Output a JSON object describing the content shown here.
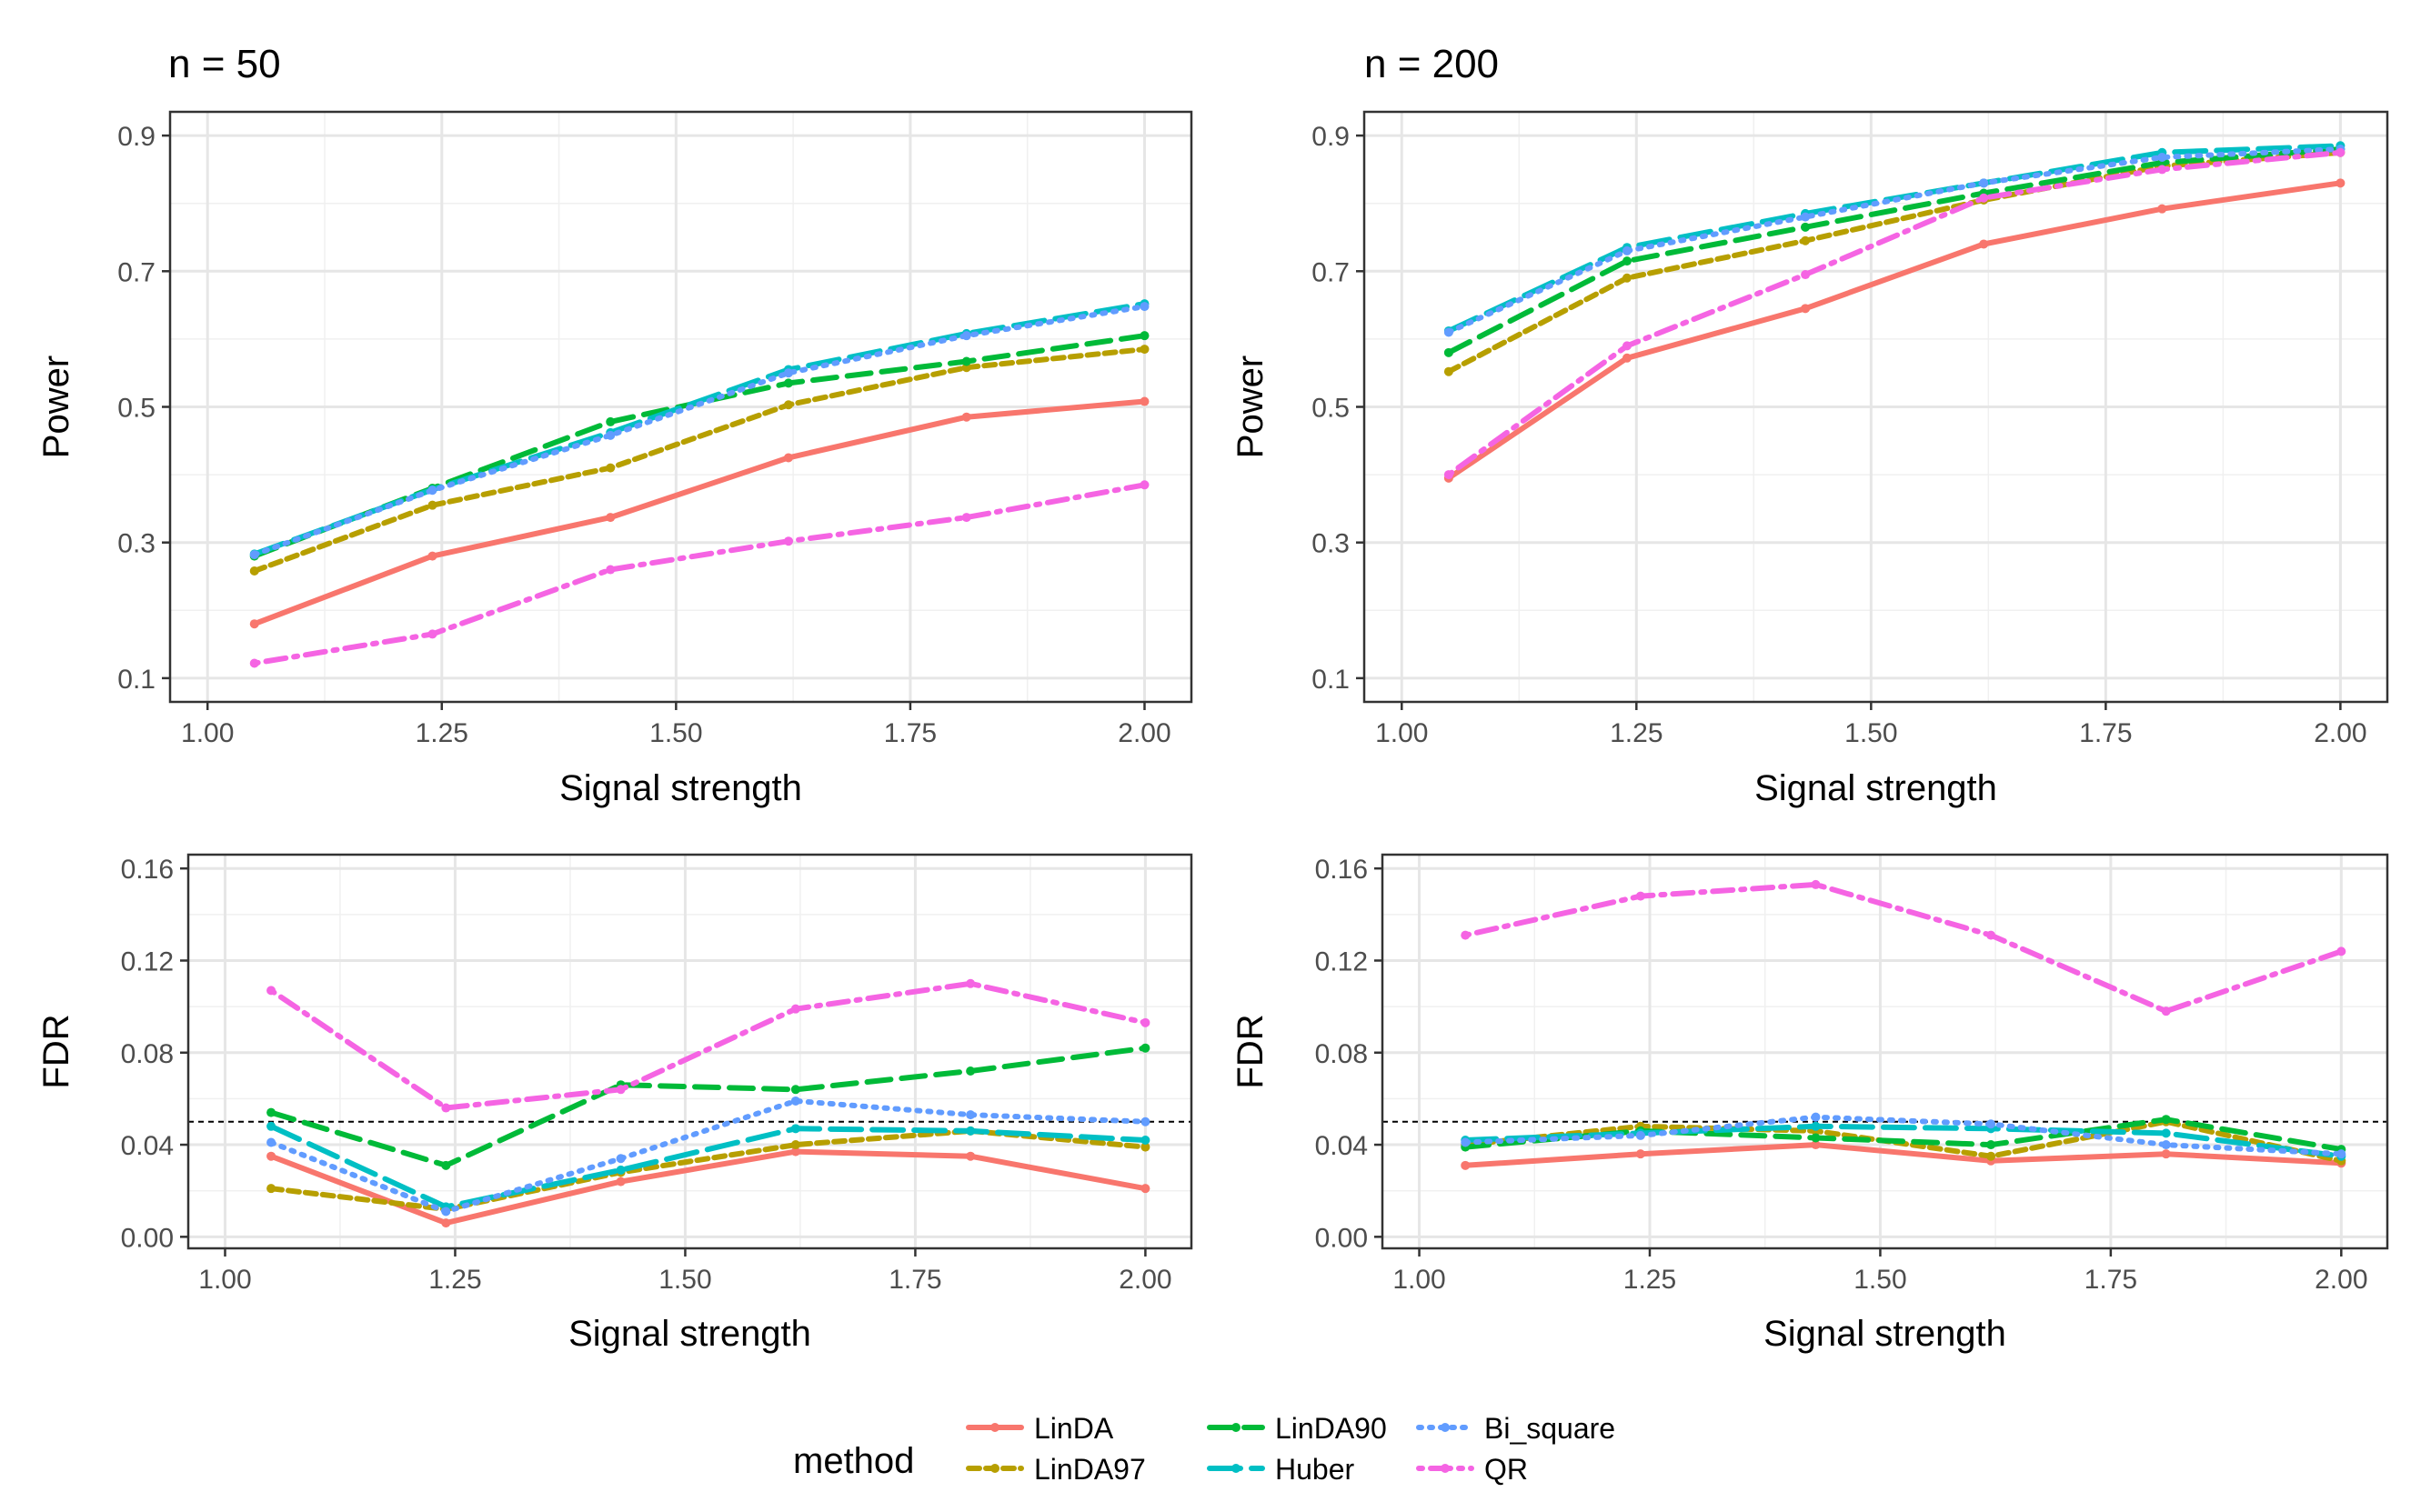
{
  "legend": {
    "title": "method",
    "items": [
      {
        "name": "LinDA",
        "color": "#F8766D",
        "dash": "solid"
      },
      {
        "name": "LinDA97",
        "color": "#B79F00",
        "dash": "short"
      },
      {
        "name": "LinDA90",
        "color": "#00BA38",
        "dash": "long"
      },
      {
        "name": "Huber",
        "color": "#00BFC4",
        "dash": "longlong"
      },
      {
        "name": "Bi_square",
        "color": "#619CFF",
        "dash": "dot"
      },
      {
        "name": "QR",
        "color": "#F564E3",
        "dash": "dotdash"
      }
    ]
  },
  "chart_data": [
    {
      "type": "line",
      "title": "n = 50",
      "xlabel": "Signal strength",
      "ylabel": "Power",
      "xlim": [
        0.96,
        2.05
      ],
      "ylim": [
        0.065,
        0.935
      ],
      "xticks": [
        "1.00",
        "1.25",
        "1.50",
        "1.75",
        "2.00"
      ],
      "yticks": [
        "0.1",
        "0.3",
        "0.5",
        "0.7",
        "0.9"
      ],
      "hline": null,
      "x": [
        1.05,
        1.24,
        1.43,
        1.62,
        1.81,
        2.0
      ],
      "series": [
        {
          "name": "LinDA",
          "values": [
            0.18,
            0.28,
            0.337,
            0.425,
            0.485,
            0.508
          ]
        },
        {
          "name": "LinDA97",
          "values": [
            0.258,
            0.355,
            0.41,
            0.503,
            0.558,
            0.585
          ]
        },
        {
          "name": "LinDA90",
          "values": [
            0.28,
            0.38,
            0.478,
            0.535,
            0.567,
            0.605
          ]
        },
        {
          "name": "Huber",
          "values": [
            0.283,
            0.378,
            0.462,
            0.555,
            0.608,
            0.652
          ]
        },
        {
          "name": "Bi_square",
          "values": [
            0.282,
            0.377,
            0.458,
            0.55,
            0.605,
            0.648
          ]
        },
        {
          "name": "QR",
          "values": [
            0.122,
            0.165,
            0.26,
            0.302,
            0.337,
            0.385
          ]
        }
      ]
    },
    {
      "type": "line",
      "title": "n = 200",
      "xlabel": "Signal strength",
      "ylabel": "Power",
      "xlim": [
        0.96,
        2.05
      ],
      "ylim": [
        0.065,
        0.935
      ],
      "xticks": [
        "1.00",
        "1.25",
        "1.50",
        "1.75",
        "2.00"
      ],
      "yticks": [
        "0.1",
        "0.3",
        "0.5",
        "0.7",
        "0.9"
      ],
      "hline": null,
      "x": [
        1.05,
        1.24,
        1.43,
        1.62,
        1.81,
        2.0
      ],
      "series": [
        {
          "name": "LinDA",
          "values": [
            0.395,
            0.572,
            0.645,
            0.74,
            0.792,
            0.83
          ]
        },
        {
          "name": "LinDA97",
          "values": [
            0.552,
            0.69,
            0.745,
            0.805,
            0.855,
            0.875
          ]
        },
        {
          "name": "LinDA90",
          "values": [
            0.58,
            0.715,
            0.765,
            0.815,
            0.86,
            0.88
          ]
        },
        {
          "name": "Huber",
          "values": [
            0.612,
            0.735,
            0.785,
            0.83,
            0.875,
            0.885
          ]
        },
        {
          "name": "Bi_square",
          "values": [
            0.61,
            0.73,
            0.78,
            0.83,
            0.868,
            0.88
          ]
        },
        {
          "name": "QR",
          "values": [
            0.4,
            0.59,
            0.695,
            0.808,
            0.85,
            0.875
          ]
        }
      ]
    },
    {
      "type": "line",
      "title": "",
      "xlabel": "Signal strength",
      "ylabel": "FDR",
      "xlim": [
        0.96,
        2.05
      ],
      "ylim": [
        -0.005,
        0.166
      ],
      "xticks": [
        "1.00",
        "1.25",
        "1.50",
        "1.75",
        "2.00"
      ],
      "yticks": [
        "0.00",
        "0.04",
        "0.08",
        "0.12",
        "0.16"
      ],
      "hline": 0.05,
      "x": [
        1.05,
        1.24,
        1.43,
        1.62,
        1.81,
        2.0
      ],
      "series": [
        {
          "name": "LinDA",
          "values": [
            0.035,
            0.006,
            0.024,
            0.037,
            0.035,
            0.021
          ]
        },
        {
          "name": "LinDA97",
          "values": [
            0.021,
            0.012,
            0.028,
            0.04,
            0.046,
            0.039
          ]
        },
        {
          "name": "LinDA90",
          "values": [
            0.054,
            0.031,
            0.066,
            0.064,
            0.072,
            0.082
          ]
        },
        {
          "name": "Huber",
          "values": [
            0.048,
            0.013,
            0.029,
            0.047,
            0.046,
            0.042
          ]
        },
        {
          "name": "Bi_square",
          "values": [
            0.041,
            0.011,
            0.034,
            0.059,
            0.053,
            0.05
          ]
        },
        {
          "name": "QR",
          "values": [
            0.107,
            0.056,
            0.064,
            0.099,
            0.11,
            0.093
          ]
        }
      ]
    },
    {
      "type": "line",
      "title": "",
      "xlabel": "Signal strength",
      "ylabel": "FDR",
      "xlim": [
        0.96,
        2.05
      ],
      "ylim": [
        -0.005,
        0.166
      ],
      "xticks": [
        "1.00",
        "1.25",
        "1.50",
        "1.75",
        "2.00"
      ],
      "yticks": [
        "0.00",
        "0.04",
        "0.08",
        "0.12",
        "0.16"
      ],
      "hline": 0.05,
      "x": [
        1.05,
        1.24,
        1.43,
        1.62,
        1.81,
        2.0
      ],
      "series": [
        {
          "name": "LinDA",
          "values": [
            0.031,
            0.036,
            0.04,
            0.033,
            0.036,
            0.032
          ]
        },
        {
          "name": "LinDA97",
          "values": [
            0.04,
            0.048,
            0.046,
            0.035,
            0.05,
            0.033
          ]
        },
        {
          "name": "LinDA90",
          "values": [
            0.039,
            0.046,
            0.043,
            0.04,
            0.051,
            0.038
          ]
        },
        {
          "name": "Huber",
          "values": [
            0.042,
            0.045,
            0.048,
            0.047,
            0.045,
            0.035
          ]
        },
        {
          "name": "Bi_square",
          "values": [
            0.041,
            0.044,
            0.052,
            0.049,
            0.04,
            0.036
          ]
        },
        {
          "name": "QR",
          "values": [
            0.131,
            0.148,
            0.153,
            0.131,
            0.098,
            0.124
          ]
        }
      ]
    }
  ]
}
